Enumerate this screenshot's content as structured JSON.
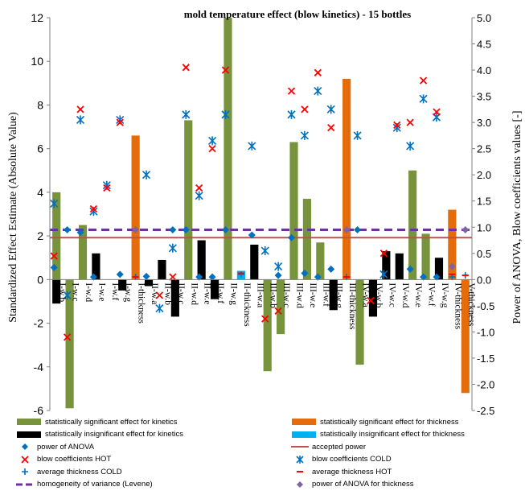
{
  "chart_data": {
    "type": "bar",
    "title": "mold temperature effect (blow kinetics) - 15 bottles",
    "ylabel": "Standardized Effect Estimate (Absolute Value)",
    "y2label": "Power of ANOVA, Blow coefficients values [-]",
    "ylim": [
      -6,
      12
    ],
    "y2lim": [
      -2.5,
      5.0
    ],
    "yticks": [
      "-6",
      "-4",
      "-2",
      "0",
      "2",
      "4",
      "6",
      "8",
      "10",
      "12"
    ],
    "y2ticks": [
      "-2.5",
      "-2.0",
      "-1.5",
      "-1.0",
      "-0.5",
      "0.0",
      "0.5",
      "1.0",
      "1.5",
      "2.0",
      "2.5",
      "3.0",
      "3.5",
      "4.0",
      "4.5",
      "5.0"
    ],
    "categories": [
      "I-w.b",
      "I-w.c",
      "I-w.d",
      "I-w.e",
      "I-w.f",
      "I-w.g",
      "I-thickness",
      "II-w.a",
      "II-w.b",
      "II-w.c",
      "II-w.d",
      "II-w.e",
      "II-w.f",
      "II-w.g",
      "II-thickness",
      "III-w.a",
      "III-w.b",
      "III-w.c",
      "III-w.d",
      "III-w.e",
      "III-w.f",
      "III-w.g",
      "III-thickness",
      "IV-w.a",
      "IV-w.b",
      "IV-w.c",
      "IV-w.d",
      "IV-w.e",
      "IV-w.f",
      "IV-w.g",
      "IV-thickness",
      "V-thickness"
    ],
    "bars": [
      {
        "cat": "I-w.b",
        "value": -1.1,
        "kind": "insig_kin"
      },
      {
        "cat": "I-w.b",
        "value": 4.0,
        "kind": "sig_kin"
      },
      {
        "cat": "I-w.c",
        "value": -5.9,
        "kind": "sig_kin"
      },
      {
        "cat": "I-w.d",
        "value": 2.5,
        "kind": "sig_kin"
      },
      {
        "cat": "I-w.e",
        "value": 1.2,
        "kind": "insig_kin"
      },
      {
        "cat": "I-w.g",
        "value": -0.5,
        "kind": "insig_kin"
      },
      {
        "cat": "I-thickness",
        "value": 6.6,
        "kind": "sig_thick"
      },
      {
        "cat": "II-w.a",
        "value": -0.3,
        "kind": "insig_kin"
      },
      {
        "cat": "II-w.b",
        "value": 0.9,
        "kind": "insig_kin"
      },
      {
        "cat": "II-w.c",
        "value": -1.7,
        "kind": "insig_kin"
      },
      {
        "cat": "II-w.d",
        "value": 7.3,
        "kind": "sig_kin"
      },
      {
        "cat": "II-w.e",
        "value": 1.8,
        "kind": "insig_kin"
      },
      {
        "cat": "II-w.f",
        "value": -0.9,
        "kind": "insig_kin"
      },
      {
        "cat": "II-w.g",
        "value": 12.0,
        "kind": "sig_kin"
      },
      {
        "cat": "II-thickness",
        "value": 0.4,
        "kind": "insig_thick"
      },
      {
        "cat": "III-w.a",
        "value": 1.6,
        "kind": "insig_kin"
      },
      {
        "cat": "III-w.b",
        "value": -4.2,
        "kind": "sig_kin"
      },
      {
        "cat": "III-w.c",
        "value": -2.5,
        "kind": "sig_kin"
      },
      {
        "cat": "III-w.d",
        "value": 6.3,
        "kind": "sig_kin"
      },
      {
        "cat": "III-w.e",
        "value": 3.7,
        "kind": "sig_kin"
      },
      {
        "cat": "III-w.f",
        "value": 1.7,
        "kind": "sig_kin"
      },
      {
        "cat": "III-w.g",
        "value": -1.4,
        "kind": "insig_kin"
      },
      {
        "cat": "III-thickness",
        "value": 9.2,
        "kind": "sig_thick"
      },
      {
        "cat": "IV-w.a",
        "value": -3.9,
        "kind": "sig_kin"
      },
      {
        "cat": "IV-w.b",
        "value": -1.7,
        "kind": "insig_kin"
      },
      {
        "cat": "IV-w.c",
        "value": 1.3,
        "kind": "insig_kin"
      },
      {
        "cat": "IV-w.d",
        "value": 1.2,
        "kind": "insig_kin"
      },
      {
        "cat": "IV-w.e",
        "value": 5.0,
        "kind": "sig_kin"
      },
      {
        "cat": "IV-w.f",
        "value": 2.1,
        "kind": "sig_kin"
      },
      {
        "cat": "IV-w.g",
        "value": 1.0,
        "kind": "insig_kin"
      },
      {
        "cat": "IV-thickness",
        "value": 3.2,
        "kind": "sig_thick"
      },
      {
        "cat": "V-thickness",
        "value": -5.2,
        "kind": "sig_thick"
      }
    ],
    "power_of_anova": [
      {
        "cat": "I-w.b",
        "value": 0.23
      },
      {
        "cat": "I-w.c",
        "value": 0.95
      },
      {
        "cat": "I-w.d",
        "value": 0.9
      },
      {
        "cat": "I-w.e",
        "value": 0.05
      },
      {
        "cat": "I-w.g",
        "value": 0.1
      },
      {
        "cat": "II-w.a",
        "value": 0.06
      },
      {
        "cat": "II-w.c",
        "value": 0.95
      },
      {
        "cat": "II-w.d",
        "value": 0.95
      },
      {
        "cat": "II-w.e",
        "value": 0.05
      },
      {
        "cat": "II-w.f",
        "value": 0.05
      },
      {
        "cat": "II-w.g",
        "value": 0.95
      },
      {
        "cat": "III-w.a",
        "value": 0.85
      },
      {
        "cat": "III-w.c",
        "value": 0.08
      },
      {
        "cat": "III-w.d",
        "value": 0.8
      },
      {
        "cat": "III-w.e",
        "value": 0.12
      },
      {
        "cat": "III-w.f",
        "value": 0.05
      },
      {
        "cat": "III-w.g",
        "value": 0.2
      },
      {
        "cat": "IV-w.a",
        "value": 0.95
      },
      {
        "cat": "IV-w.e",
        "value": 0.2
      },
      {
        "cat": "IV-w.f",
        "value": 0.05
      },
      {
        "cat": "IV-w.g",
        "value": 0.05
      }
    ],
    "blow_coefficients_hot": [
      {
        "cat": "I-w.b",
        "value": 0.45
      },
      {
        "cat": "I-w.c",
        "value": -1.1
      },
      {
        "cat": "I-w.d",
        "value": 3.25
      },
      {
        "cat": "I-w.e",
        "value": 1.35
      },
      {
        "cat": "I-w.f",
        "value": 1.75
      },
      {
        "cat": "I-w.g",
        "value": 3.0
      },
      {
        "cat": "II-w.b",
        "value": -0.3
      },
      {
        "cat": "II-w.c",
        "value": 0.05
      },
      {
        "cat": "II-w.d",
        "value": 4.05
      },
      {
        "cat": "II-w.e",
        "value": 1.75
      },
      {
        "cat": "II-w.f",
        "value": 2.5
      },
      {
        "cat": "II-w.g",
        "value": 4.0
      },
      {
        "cat": "III-w.b",
        "value": -0.75
      },
      {
        "cat": "III-w.c",
        "value": -0.6
      },
      {
        "cat": "III-w.d",
        "value": 3.6
      },
      {
        "cat": "III-w.e",
        "value": 3.25
      },
      {
        "cat": "III-w.f",
        "value": 3.95
      },
      {
        "cat": "III-w.g",
        "value": 2.9
      },
      {
        "cat": "IV-w.b",
        "value": -0.4
      },
      {
        "cat": "IV-w.c",
        "value": 0.5
      },
      {
        "cat": "IV-w.d",
        "value": 2.95
      },
      {
        "cat": "IV-w.e",
        "value": 3.0
      },
      {
        "cat": "IV-w.f",
        "value": 3.8
      },
      {
        "cat": "IV-w.g",
        "value": 3.2
      }
    ],
    "blow_coefficients_cold": [
      {
        "cat": "I-w.b",
        "value": 1.45
      },
      {
        "cat": "I-w.c",
        "value": -0.3
      },
      {
        "cat": "I-w.d",
        "value": 3.05
      },
      {
        "cat": "I-w.e",
        "value": 1.3
      },
      {
        "cat": "I-w.f",
        "value": 1.8
      },
      {
        "cat": "I-w.g",
        "value": 3.05
      },
      {
        "cat": "II-w.a",
        "value": 2.0
      },
      {
        "cat": "II-w.b",
        "value": -0.55
      },
      {
        "cat": "II-w.c",
        "value": 0.6
      },
      {
        "cat": "II-w.d",
        "value": 3.15
      },
      {
        "cat": "II-w.e",
        "value": 1.6
      },
      {
        "cat": "II-w.f",
        "value": 2.65
      },
      {
        "cat": "II-w.g",
        "value": 3.15
      },
      {
        "cat": "III-w.a",
        "value": 2.55
      },
      {
        "cat": "III-w.b",
        "value": 0.55
      },
      {
        "cat": "III-w.c",
        "value": 0.25
      },
      {
        "cat": "III-w.d",
        "value": 3.15
      },
      {
        "cat": "III-w.e",
        "value": 2.75
      },
      {
        "cat": "III-w.f",
        "value": 3.6
      },
      {
        "cat": "III-w.g",
        "value": 3.25
      },
      {
        "cat": "IV-w.a",
        "value": 2.75
      },
      {
        "cat": "IV-w.c",
        "value": 0.1
      },
      {
        "cat": "IV-w.d",
        "value": 2.9
      },
      {
        "cat": "IV-w.e",
        "value": 2.55
      },
      {
        "cat": "IV-w.f",
        "value": 3.45
      },
      {
        "cat": "IV-w.g",
        "value": 3.1
      }
    ],
    "average_thickness_hot": [
      {
        "cat": "I-thickness",
        "value": 0.05
      },
      {
        "cat": "II-thickness",
        "value": 0.12
      },
      {
        "cat": "III-thickness",
        "value": 0.05
      },
      {
        "cat": "IV-thickness",
        "value": 0.1
      },
      {
        "cat": "V-thickness",
        "value": 0.08
      }
    ],
    "average_thickness_cold": [
      {
        "cat": "I-thickness",
        "value": 0.05
      },
      {
        "cat": "II-thickness",
        "value": 0.1
      },
      {
        "cat": "III-thickness",
        "value": 0.05
      },
      {
        "cat": "IV-thickness",
        "value": 0.05
      },
      {
        "cat": "V-thickness",
        "value": 0.08
      }
    ],
    "power_of_anova_thickness": [
      {
        "cat": "I-thickness",
        "value": 0.95
      },
      {
        "cat": "III-thickness",
        "value": 0.95
      },
      {
        "cat": "IV-thickness",
        "value": 0.25
      },
      {
        "cat": "V-thickness",
        "value": 0.95
      }
    ],
    "accepted_power": 0.8,
    "homogeneity_of_variance": 0.95,
    "legend": [
      {
        "key": "sig_kin",
        "label": "statistically significant effect for kinetics",
        "color": "#77933C"
      },
      {
        "key": "sig_thick",
        "label": "statistically significant effect for thickness",
        "color": "#E46C0A"
      },
      {
        "key": "insig_kin",
        "label": "statistically insignificant effect for kinetics",
        "color": "#000000"
      },
      {
        "key": "insig_thick",
        "label": "statistically insignificant effect for thickness",
        "color": "#00B0F0"
      },
      {
        "key": "power",
        "label": "power of ANOVA",
        "color": "#0070C0"
      },
      {
        "key": "accepted",
        "label": "accepted power",
        "color": "#C0504D"
      },
      {
        "key": "hot",
        "label": "blow coefficients HOT",
        "color": "#FF0000"
      },
      {
        "key": "cold",
        "label": "blow coefficients COLD",
        "color": "#0070C0"
      },
      {
        "key": "thick_cold",
        "label": "average thickness COLD",
        "color": "#0070C0"
      },
      {
        "key": "thick_hot",
        "label": "average thickness HOT",
        "color": "#FF0000"
      },
      {
        "key": "levene",
        "label": "homogeneity of variance (Levene)",
        "color": "#7030A0"
      },
      {
        "key": "power_thick",
        "label": "power of ANOVA for thickness",
        "color": "#8064A2"
      }
    ]
  }
}
